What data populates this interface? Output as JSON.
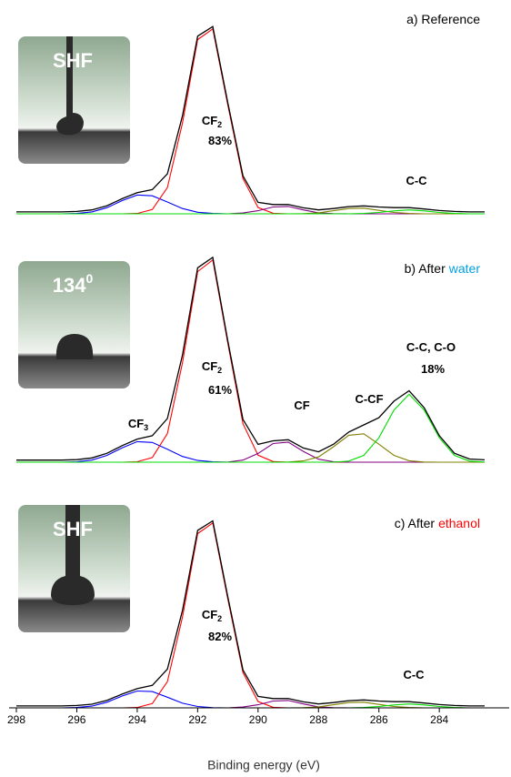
{
  "chart_data": [
    {
      "type": "line",
      "title": "a) Reference",
      "inset_label": {
        "text": "SHF"
      },
      "annotations": [
        {
          "text": "CF",
          "sub": "2"
        },
        {
          "text": "83%"
        },
        {
          "text": "C-C"
        }
      ],
      "xlim": [
        298,
        282.5
      ],
      "ylim": [
        0,
        100
      ],
      "x": [
        298,
        297.5,
        297,
        296.5,
        296,
        295.5,
        295,
        294.5,
        294,
        293.5,
        293,
        292.5,
        292,
        291.5,
        291,
        290.5,
        290,
        289.5,
        289,
        288.5,
        288,
        287.5,
        287,
        286.5,
        286,
        285.5,
        285,
        284.5,
        284,
        283.5,
        283,
        282.5
      ],
      "series": [
        {
          "color": "#0000ff",
          "values": [
            0,
            0,
            0,
            0,
            0.2,
            1,
            3.2,
            6.8,
            9.7,
            9.3,
            6.1,
            2.7,
            0.8,
            0.2,
            0,
            0,
            0,
            0,
            0,
            0,
            0,
            0,
            0,
            0,
            0,
            0,
            0,
            0,
            0,
            0,
            0,
            0
          ]
        },
        {
          "color": "#ff0000",
          "values": [
            0,
            0,
            0,
            0,
            0,
            0,
            0,
            0,
            0.2,
            2.2,
            13.5,
            46.9,
            89.9,
            95.4,
            56,
            18.2,
            3.3,
            0.3,
            0,
            0,
            0,
            0,
            0,
            0,
            0,
            0,
            0,
            0,
            0,
            0,
            0,
            0
          ]
        },
        {
          "color": "#800080",
          "values": [
            0,
            0,
            0,
            0,
            0,
            0,
            0,
            0,
            0,
            0,
            0,
            0,
            0,
            0,
            0,
            0.4,
            1.6,
            3.5,
            3.8,
            2,
            0.5,
            0.1,
            0,
            0,
            0,
            0,
            0,
            0,
            0,
            0,
            0,
            0
          ]
        },
        {
          "color": "#808000",
          "values": [
            0,
            0,
            0,
            0,
            0,
            0,
            0,
            0,
            0,
            0,
            0,
            0,
            0,
            0,
            0,
            0,
            0,
            0,
            0,
            0.1,
            0.5,
            1.6,
            2.7,
            2.9,
            1.8,
            0.7,
            0.2,
            0,
            0,
            0,
            0,
            0
          ]
        },
        {
          "color": "#00dd00",
          "values": [
            0,
            0,
            0,
            0,
            0,
            0,
            0,
            0,
            0,
            0,
            0,
            0,
            0,
            0,
            0,
            0,
            0,
            0,
            0,
            0,
            0,
            0,
            0,
            0.2,
            0.7,
            1.5,
            2,
            1.5,
            0.7,
            0.2,
            0,
            0
          ]
        },
        {
          "color": "#000000",
          "values": [
            1,
            1,
            1,
            1,
            1.2,
            2,
            4.2,
            7.8,
            10.9,
            12.5,
            20.6,
            50.6,
            91.7,
            96.6,
            57.2,
            19.6,
            5.9,
            4.8,
            4.8,
            3.1,
            2,
            2.7,
            3.7,
            4.1,
            3.5,
            3.2,
            3.2,
            2.5,
            1.7,
            1.2,
            1,
            1
          ]
        }
      ]
    },
    {
      "type": "line",
      "title": "b) After",
      "title_highlight": "water",
      "highlight_color": "#00a0e0",
      "inset_label": {
        "text": "134",
        "sup": "0"
      },
      "annotations": [
        {
          "text": "CF",
          "sub": "3"
        },
        {
          "text": "CF",
          "sub": "2"
        },
        {
          "text": "61%"
        },
        {
          "text": "CF"
        },
        {
          "text": "C-CF"
        },
        {
          "text": "C-C, C-O"
        },
        {
          "text": "18%"
        }
      ],
      "xlim": [
        298,
        282.5
      ],
      "ylim": [
        0,
        100
      ],
      "x": [
        298,
        297.5,
        297,
        296.5,
        296,
        295.5,
        295,
        294.5,
        294,
        293.5,
        293,
        292.5,
        292,
        291.5,
        291,
        290.5,
        290,
        289.5,
        289,
        288.5,
        288,
        287.5,
        287,
        286.5,
        286,
        285.5,
        285,
        284.5,
        284,
        283.5,
        283,
        282.5
      ],
      "series": [
        {
          "color": "#0000ff",
          "values": [
            0,
            0,
            0,
            0,
            0.2,
            1,
            3.2,
            6.8,
            9.7,
            9.3,
            6.1,
            2.7,
            0.8,
            0.2,
            0,
            0,
            0,
            0,
            0,
            0,
            0,
            0,
            0,
            0,
            0,
            0,
            0,
            0,
            0,
            0,
            0,
            0
          ]
        },
        {
          "color": "#ff0000",
          "values": [
            0,
            0,
            0,
            0,
            0,
            0,
            0,
            0,
            0.2,
            2.2,
            13.5,
            46.9,
            89.9,
            95.4,
            56,
            18.2,
            3.3,
            0.3,
            0,
            0,
            0,
            0,
            0,
            0,
            0,
            0,
            0,
            0,
            0,
            0,
            0,
            0
          ]
        },
        {
          "color": "#800080",
          "values": [
            0,
            0,
            0,
            0,
            0,
            0,
            0,
            0,
            0,
            0,
            0,
            0,
            0,
            0,
            0.1,
            1,
            4.1,
            8.8,
            9.5,
            5.1,
            1.4,
            0.2,
            0,
            0,
            0,
            0,
            0,
            0,
            0,
            0,
            0,
            0
          ]
        },
        {
          "color": "#808000",
          "values": [
            0,
            0,
            0,
            0,
            0,
            0,
            0,
            0,
            0,
            0,
            0,
            0,
            0,
            0,
            0,
            0,
            0,
            0,
            0.1,
            0.6,
            2.5,
            7.3,
            12.7,
            13.4,
            8.5,
            3.2,
            0.7,
            0.1,
            0,
            0,
            0,
            0
          ]
        },
        {
          "color": "#00dd00",
          "values": [
            0,
            0,
            0,
            0,
            0,
            0,
            0,
            0,
            0,
            0,
            0,
            0,
            0,
            0,
            0,
            0,
            0,
            0,
            0,
            0,
            0,
            0,
            0.5,
            3.2,
            11.5,
            24.6,
            32,
            24.6,
            11.5,
            3.2,
            0.5,
            0.1
          ]
        },
        {
          "color": "#000000",
          "values": [
            1,
            1,
            1,
            1,
            1.2,
            2,
            4.2,
            7.8,
            10.9,
            12.5,
            20.6,
            50.6,
            91.7,
            96.6,
            57.1,
            20.2,
            8.4,
            10.1,
            10.6,
            6.7,
            4.9,
            8.5,
            14.2,
            17.6,
            21,
            28.8,
            33.7,
            25.7,
            12.5,
            4.2,
            1.5,
            1.1
          ]
        }
      ]
    },
    {
      "type": "line",
      "title": "c) After",
      "title_highlight": "ethanol",
      "highlight_color": "#ff0000",
      "inset_label": {
        "text": "SHF"
      },
      "annotations": [
        {
          "text": "CF",
          "sub": "2"
        },
        {
          "text": "82%"
        },
        {
          "text": "C-C"
        }
      ],
      "xlim": [
        298,
        282.5
      ],
      "ylim": [
        0,
        100
      ],
      "xlabel": "Binding energy (eV)",
      "xticks": [
        298,
        296,
        294,
        292,
        290,
        288,
        286,
        284
      ],
      "x": [
        298,
        297.5,
        297,
        296.5,
        296,
        295.5,
        295,
        294.5,
        294,
        293.5,
        293,
        292.5,
        292,
        291.5,
        291,
        290.5,
        290,
        289.5,
        289,
        288.5,
        288,
        287.5,
        287,
        286.5,
        286,
        285.5,
        285,
        284.5,
        284,
        283.5,
        283,
        282.5
      ],
      "series": [
        {
          "color": "#0000ff",
          "values": [
            0,
            0,
            0,
            0,
            0.2,
            0.9,
            2.9,
            6.1,
            8.7,
            8.4,
            5.5,
            2.4,
            0.7,
            0.1,
            0,
            0,
            0,
            0,
            0,
            0,
            0,
            0,
            0,
            0,
            0,
            0,
            0,
            0,
            0,
            0,
            0,
            0
          ]
        },
        {
          "color": "#ff0000",
          "values": [
            0,
            0,
            0,
            0,
            0,
            0,
            0,
            0,
            0.2,
            2.2,
            13.5,
            46.9,
            89.9,
            95.4,
            56,
            18.2,
            3.3,
            0.3,
            0,
            0,
            0,
            0,
            0,
            0,
            0,
            0,
            0,
            0,
            0,
            0,
            0,
            0
          ]
        },
        {
          "color": "#800080",
          "values": [
            0,
            0,
            0,
            0,
            0,
            0,
            0,
            0,
            0,
            0,
            0,
            0,
            0,
            0,
            0,
            0.4,
            1.6,
            3.5,
            3.8,
            2,
            0.5,
            0.1,
            0,
            0,
            0,
            0,
            0,
            0,
            0,
            0,
            0,
            0
          ]
        },
        {
          "color": "#808000",
          "values": [
            0,
            0,
            0,
            0,
            0,
            0,
            0,
            0,
            0,
            0,
            0,
            0,
            0,
            0,
            0,
            0,
            0,
            0,
            0,
            0.1,
            0.5,
            1.6,
            2.7,
            2.9,
            1.8,
            0.7,
            0.2,
            0,
            0,
            0,
            0,
            0
          ]
        },
        {
          "color": "#00dd00",
          "values": [
            0,
            0,
            0,
            0,
            0,
            0,
            0,
            0,
            0,
            0,
            0,
            0,
            0,
            0,
            0,
            0,
            0,
            0,
            0,
            0,
            0,
            0,
            0,
            0.2,
            0.7,
            1.5,
            2,
            1.5,
            0.7,
            0.2,
            0,
            0
          ]
        },
        {
          "color": "#000000",
          "values": [
            1,
            1,
            1,
            1,
            1.2,
            1.9,
            3.9,
            7.1,
            9.9,
            11.6,
            20,
            50.3,
            91.6,
            96.5,
            57.2,
            19.6,
            5.9,
            4.8,
            4.8,
            3.1,
            2,
            2.7,
            3.7,
            4.1,
            3.5,
            3.2,
            3.2,
            2.5,
            1.7,
            1.2,
            1,
            1
          ]
        }
      ]
    }
  ]
}
